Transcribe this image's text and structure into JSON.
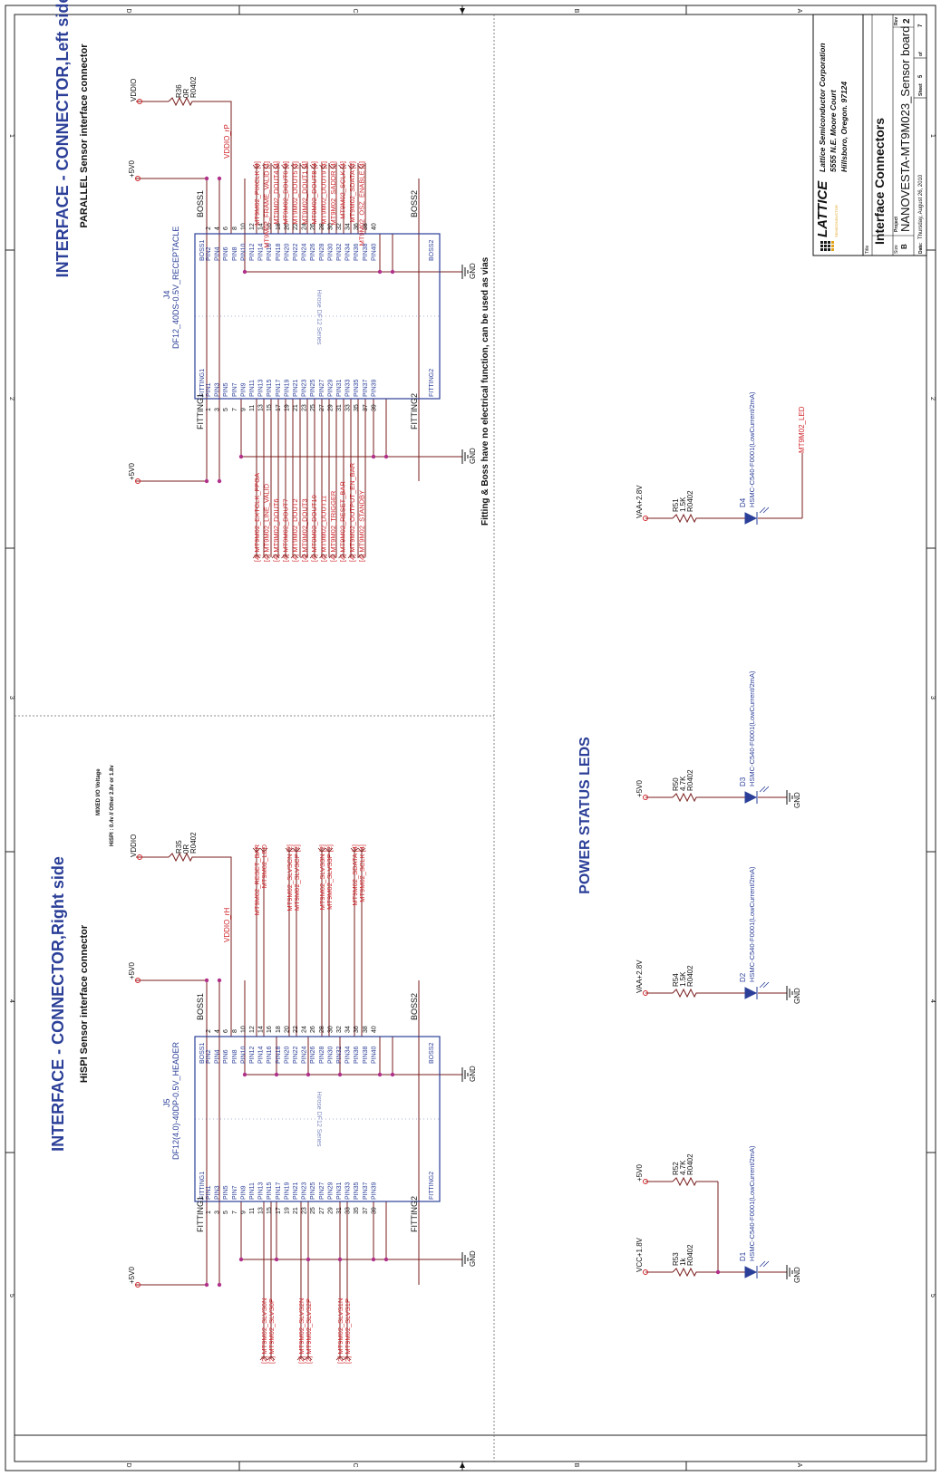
{
  "border": {
    "zones_top": [
      "D",
      "C",
      "B",
      "A"
    ],
    "zones_bottom": [
      "D",
      "C",
      "B",
      "A"
    ],
    "rows_left": [
      "1",
      "2",
      "3",
      "4",
      "5"
    ],
    "rows_right": [
      "1",
      "2",
      "3",
      "4",
      "5"
    ]
  },
  "left_connector": {
    "title": "INTERFACE - CONNECTOR,Left side",
    "subtitle": "PARALLEL Sensor interface connector",
    "ref": "J4",
    "part": "DF12_40DS-0.5V_RECEPTACLE",
    "series": "Hirose DF12 Series",
    "resistor_ref": "R36",
    "resistor_value": "0R",
    "resistor_pkg": "R0402",
    "vddio": "VDDIO",
    "vddio_net": "VDDIO_rP",
    "p5v_a": "+5V0",
    "p5v_b": "+5V0",
    "gnd_a": "GND",
    "gnd_b": "GND",
    "fitting1": "FITTING1",
    "fitting2": "FITTING2",
    "boss1": "BOSS1",
    "boss2": "BOSS2",
    "top_nets": [
      "MT9M02_PIXCLK [4]",
      "MT9M02_FRAME_VALID [4]",
      "MT9M02_DOUT4 [4]",
      "MT9M02_DOUT0 [4]",
      "MT9M02_DOUT5 [4]",
      "MT9M02_DOUT1 [4]",
      "MT9M02_DOUT8 [4]",
      "MT9M02_DOUT9 [4]",
      "MT9M02_SADDR [4]",
      "MT9M02_SCLK [4]",
      "MT9M02_SDATA [4]",
      "MT9M02_OSZ_ENABLE [4]"
    ],
    "bottom_nets": [
      "[4] MT9M02_EXTCLK_FPGA",
      "[4] MT9M02_LINE_VALID",
      "[4] MT9M02_DOUT6",
      "[4] MT9M02_DOUT7",
      "[4] MT9M02_DOUT2",
      "[4] MT9M02_DOUT3",
      "[4] MT9M02_DOUT10",
      "[4] MT9M02_DOUT11",
      "[4] MT9M02_TRIGGER",
      "[4] MT9M02_RESET_BAR",
      "[4] MT9M02_OUTPUT_EN_BAR",
      "[4] MT9M02_STANDBY"
    ]
  },
  "right_connector": {
    "title": "INTERFACE - CONNECTOR,Right side",
    "subtitle": "HiSPI Sensor interface connector",
    "note1": "MIXED I/O Voltage",
    "note2": "HiSPI : 0.4v // Other 2.8v or 1.8v",
    "ref": "J5",
    "part": "DF12(4.0)-40DP-0.5V_HEADER",
    "series": "Hirose DF12 Series",
    "resistor_ref": "R35",
    "resistor_value": "0R",
    "resistor_pkg": "R0402",
    "vddio": "VDDIO",
    "vddio_net": "VDDIO_rH",
    "p5v_a": "+5V0",
    "p5v_b": "+5V0",
    "gnd_a": "GND",
    "gnd_b": "GND",
    "fitting1": "FITTING1",
    "fitting2": "FITTING2",
    "boss1": "BOSS1",
    "boss2": "BOSS2",
    "top_nets": [
      "MT9M02_RESET_BAR",
      "MT9M02_LED",
      "MT9M02_SLVSCN [2]",
      "MT9M02_SLVSCP [2]",
      "MT9M02_SLVS3N [2]",
      "MT9M02_SLVS3P [2]",
      "MT9M02_SDATA [4]",
      "MT9M02_SCLK [4]"
    ],
    "bottom_nets": [
      "[2] MT9M02_SLVS0N",
      "[2] MT9M02_SLVS0P",
      "[2] MT9M02_SLVS2N",
      "[2] MT9M02_SLVS2P",
      "[2] MT9M02_SLVS1N",
      "[2] MT9M02_SLVS1P"
    ]
  },
  "fitting_note": "Fitting & Boss have no electrical function, can be used as vias",
  "leds": {
    "title": "POWER STATUS LEDS",
    "part": "HSMC-C540-F0001(LowCurrent/2mA)",
    "gnd": "GND",
    "d4": {
      "ref": "D4",
      "supply": "VAA+2.8V",
      "r_ref": "R51",
      "r_val": "1.5K",
      "r_pkg": "R0402",
      "net": "MT9M02_LED"
    },
    "d3": {
      "ref": "D3",
      "supply": "+5V0",
      "r_ref": "R50",
      "r_val": "4.7K",
      "r_pkg": "R0402"
    },
    "d2": {
      "ref": "D2",
      "supply": "VAA+2.8V",
      "r_ref": "R54",
      "r_val": "1.5K",
      "r_pkg": "R0402"
    },
    "d1": {
      "ref": "D1",
      "supply_a": "VCC+1.8V",
      "supply_b": "+5V0",
      "r_ref_a": "R53",
      "r_val_a": "1k",
      "r_pkg_a": "R0402",
      "r_ref_b": "R52",
      "r_val_b": "4.7K",
      "r_pkg_b": "R0402"
    }
  },
  "title_block": {
    "logo": "LATTICE",
    "logo_sub": "SEMICONDUCTOR",
    "company": "Lattice Semiconductor Corporation",
    "address1": "5555 N.E. Moore Court",
    "address2": "Hillsboro, Oregon. 97124",
    "title_label": "Title",
    "title": "Interface Connectors",
    "size_label": "Size",
    "size": "B",
    "project_label": "Project",
    "project": "NANOVESTA-MT9M023_Sensor board",
    "rev_label": "Rev",
    "rev": "2",
    "date_label": "Date:",
    "date": "Thursday, August 26, 2010",
    "sheet_label": "Sheet",
    "sheet": "5",
    "of_label": "of",
    "of": "7"
  },
  "colors": {
    "wire": "#7a1e1e",
    "net": "#d0242a",
    "part": "#2b3f98",
    "junction": "#b0308a"
  }
}
